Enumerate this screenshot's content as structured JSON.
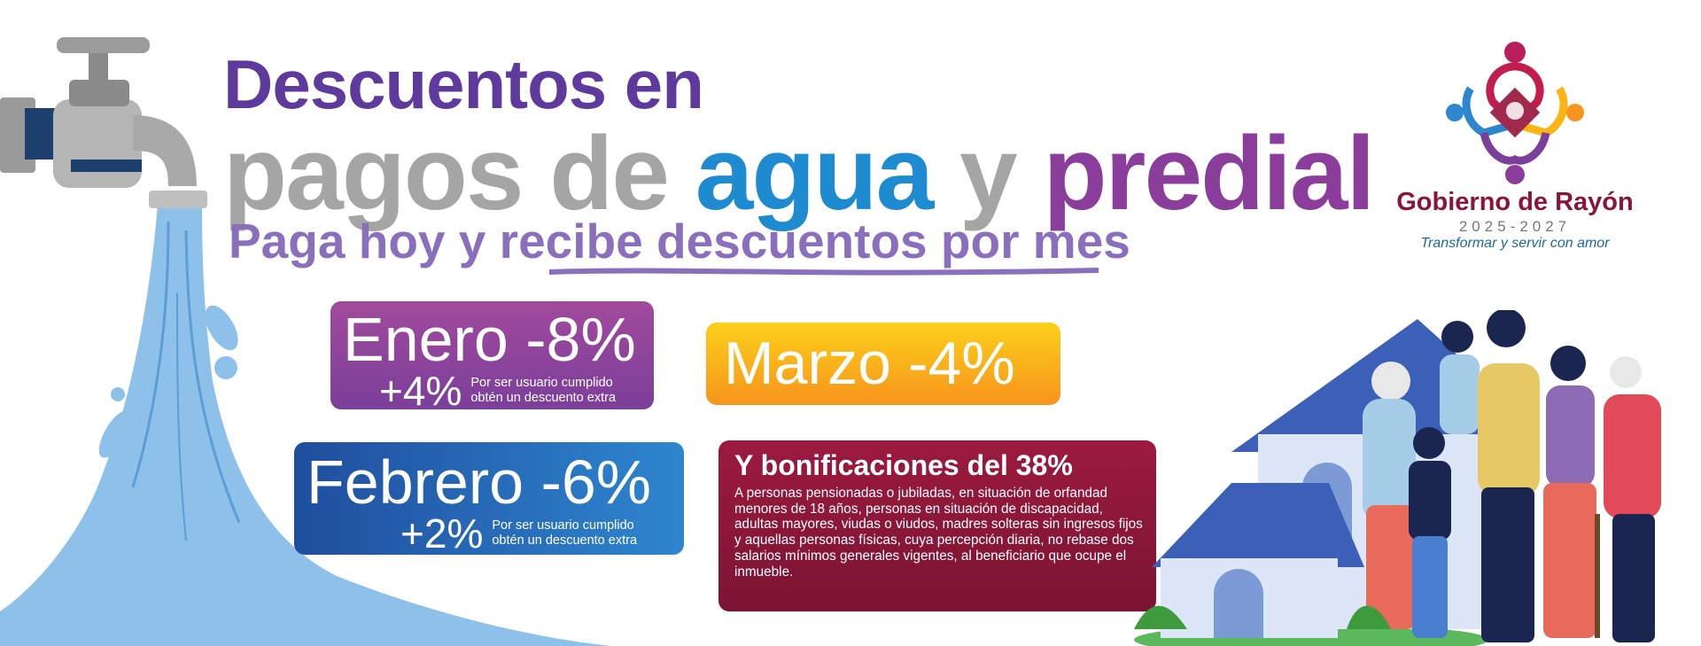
{
  "headline": {
    "line1": "Descuentos en",
    "line2_word1": "pagos de",
    "line2_word2": "agua",
    "line2_word3": "y",
    "line2_word4": "predial",
    "line3": "Paga hoy y recibe descuentos por mes"
  },
  "cards": {
    "enero": {
      "main": "Enero -8%",
      "extra": "+4%",
      "note_line1": "Por ser usuario cumplido",
      "note_line2": "obtén un descuento extra"
    },
    "marzo": {
      "main": "Marzo -4%"
    },
    "febrero": {
      "main": "Febrero -6%",
      "extra": "+2%",
      "note_line1": "Por ser usuario cumplido",
      "note_line2": "obtén un descuento extra"
    },
    "bonificaciones": {
      "title": "Y bonificaciones del 38%",
      "text": "A personas pensionadas o jubiladas, en situación de orfandad menores de 18 años, personas en situación de discapacidad, adultas mayores, viudas o viudos, madres solteras sin ingresos fijos y aquellas personas físicas, cuya percepción diaria, no rebase dos salarios mínimos generales vigentes, al beneficiario que ocupe el inmueble."
    }
  },
  "logo": {
    "name": "Gobierno de Rayón",
    "years": "2025-2027",
    "slogan": "Transformar y servir con amor"
  },
  "colors": {
    "purple": "#5d3a9b",
    "blue": "#1e8bd0",
    "magenta": "#8a3d9b",
    "gray": "#a5a5a5",
    "water": "#8ec1ea",
    "wine": "#8a1538"
  },
  "icons": [
    "water-faucet-icon",
    "family-illustration",
    "house-illustration",
    "gobierno-logo-icon"
  ]
}
